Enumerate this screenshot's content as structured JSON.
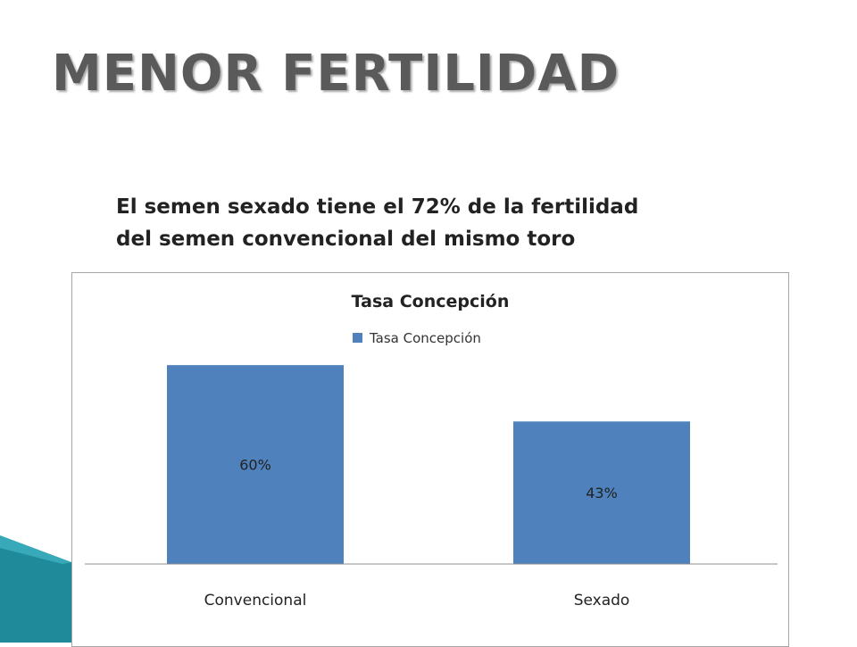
{
  "slide": {
    "title": "MENOR FERTILIDAD",
    "subtitle_lines": [
      "El semen sexado tiene el 72% de la fertilidad",
      "del semen convencional del mismo toro"
    ]
  },
  "colors": {
    "bar": "#4f81bd",
    "title_text": "#5a5a5a",
    "corner_teal": "#1f8a9a"
  },
  "chart_data": {
    "type": "bar",
    "title": "Tasa Concepción",
    "categories": [
      "Convencional",
      "Sexado"
    ],
    "series": [
      {
        "name": "Tasa Concepción",
        "values": [
          60,
          43
        ]
      }
    ],
    "data_labels": [
      "60%",
      "43%"
    ],
    "ylim": [
      0,
      70
    ],
    "grid": false,
    "legend_position": "top"
  }
}
